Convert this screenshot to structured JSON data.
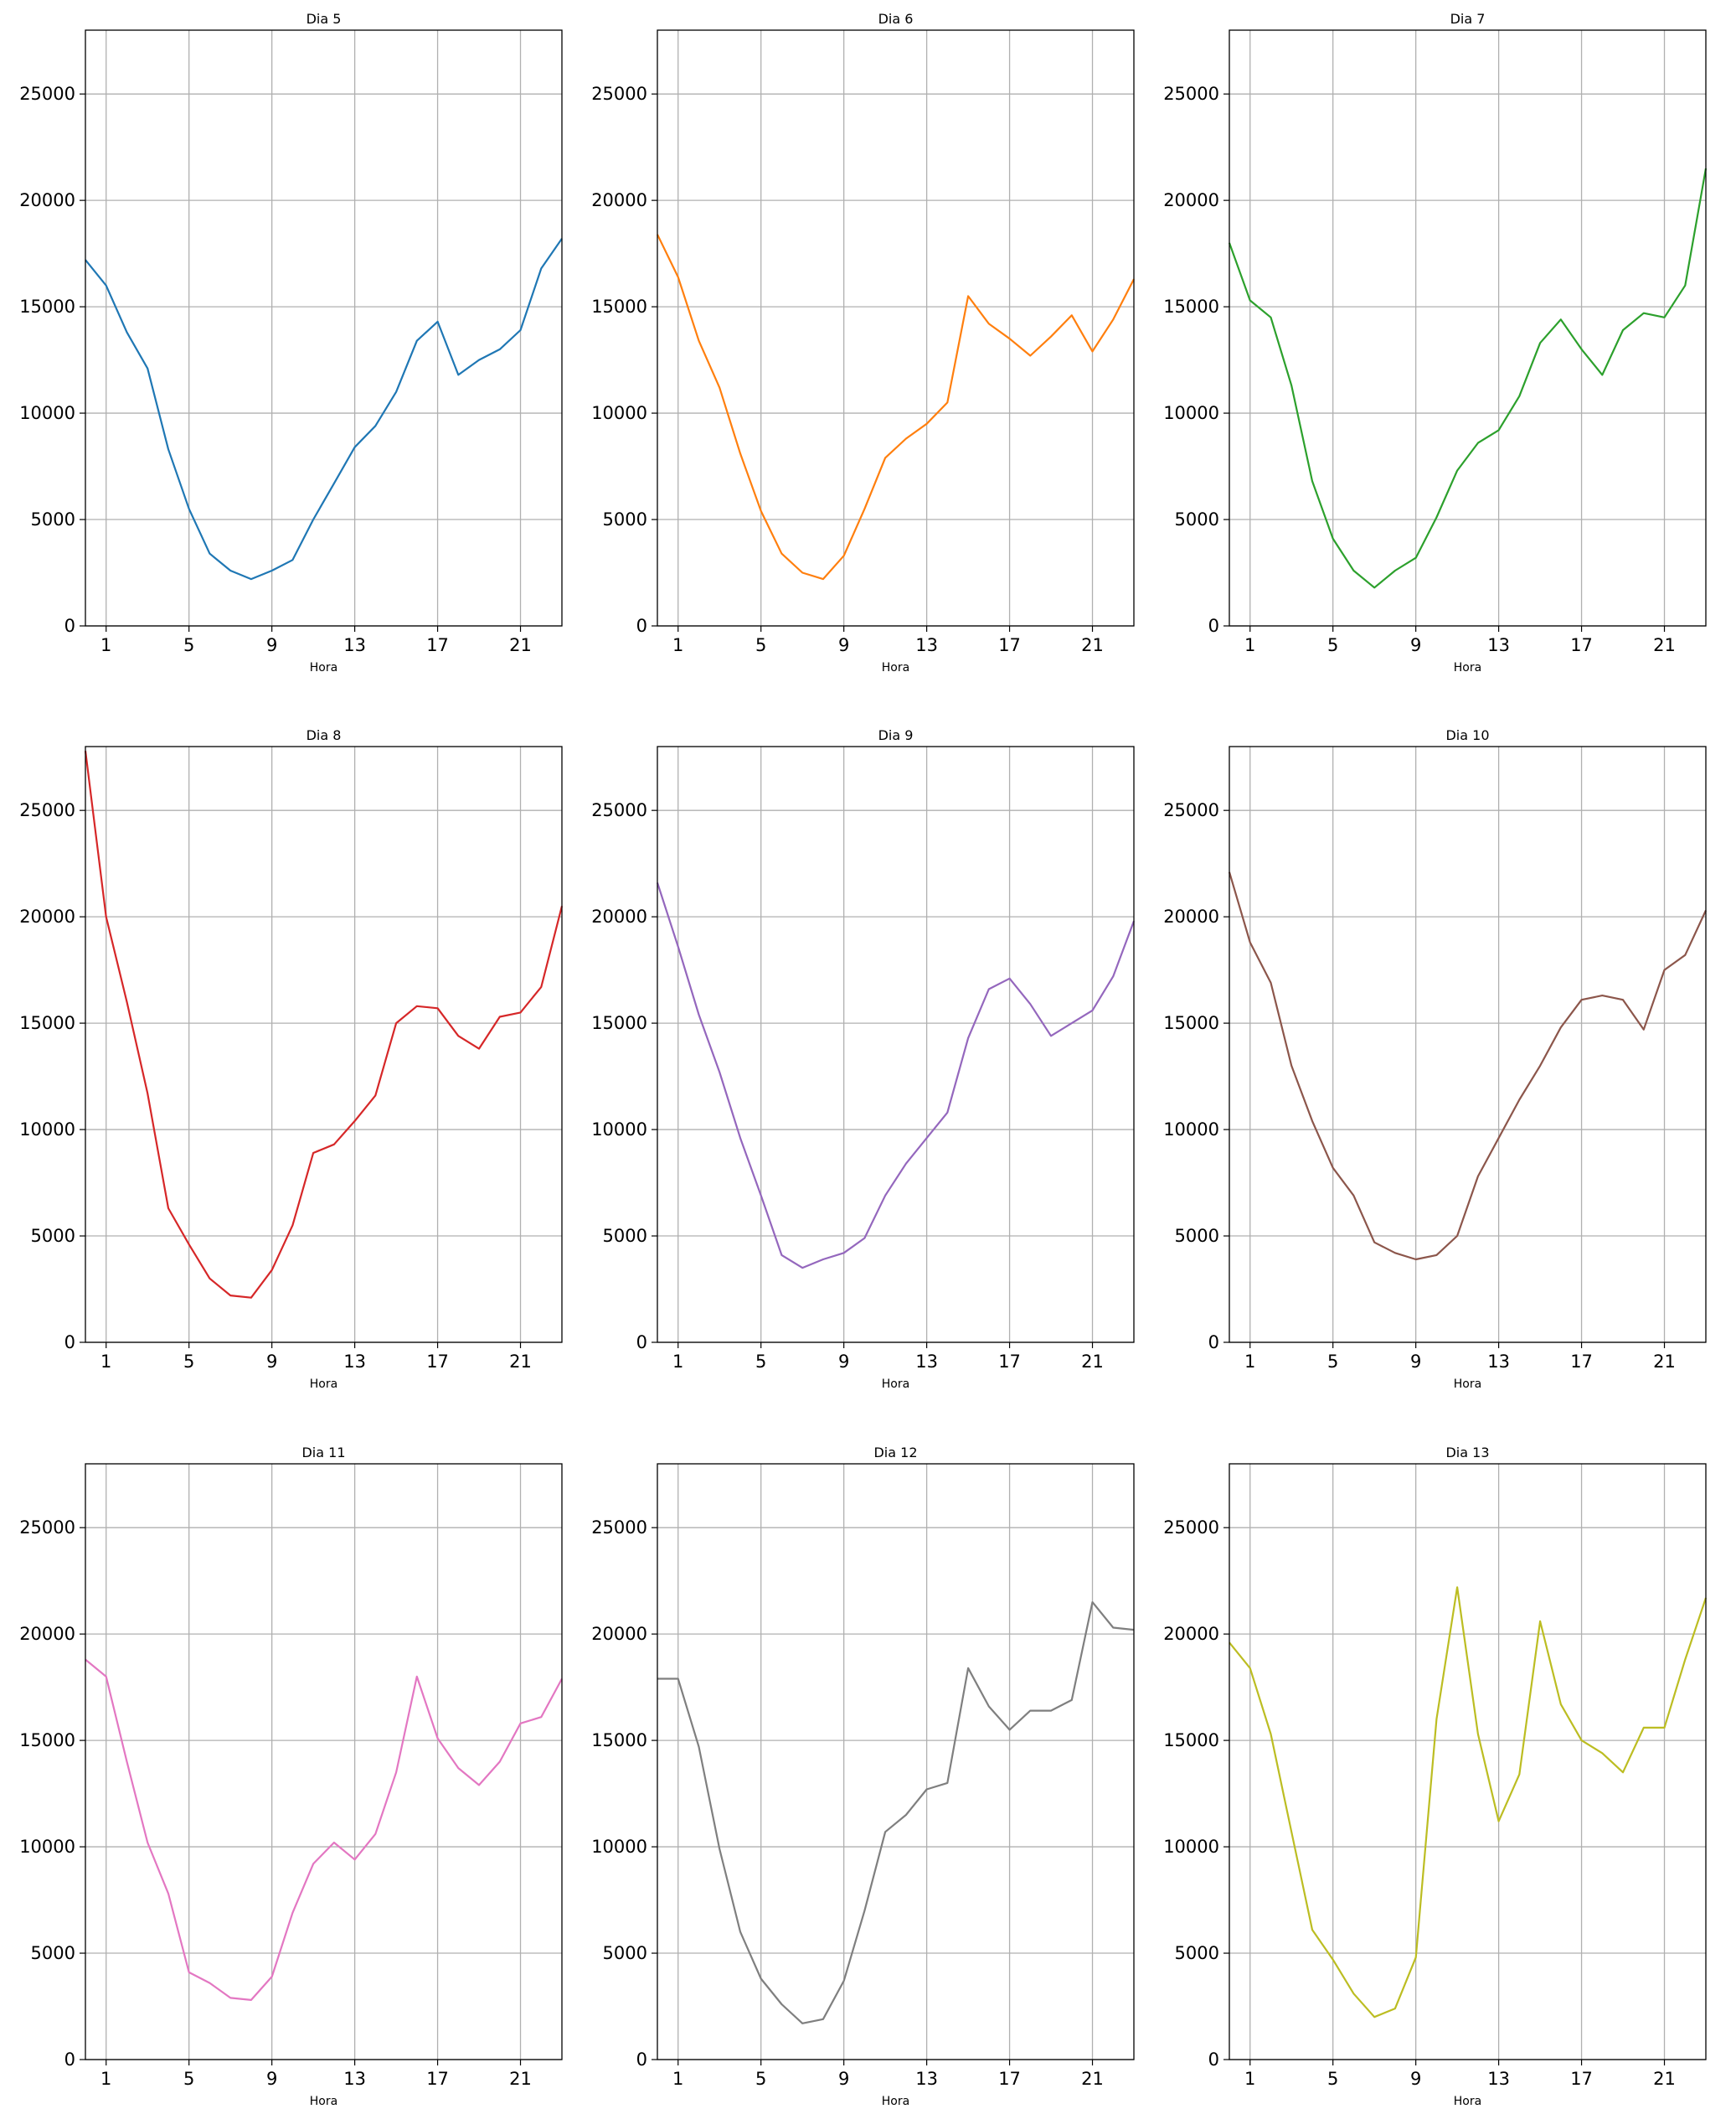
{
  "chart_data": [
    {
      "type": "line",
      "title": "Dia 5",
      "xlabel": "Hora",
      "ylabel": "",
      "xlim": [
        0,
        23
      ],
      "ylim": [
        0,
        28000
      ],
      "xticks": [
        1,
        5,
        9,
        13,
        17,
        21
      ],
      "yticks": [
        0,
        5000,
        10000,
        15000,
        20000,
        25000
      ],
      "grid": true,
      "color": "#1f77b4",
      "x": [
        0,
        1,
        2,
        3,
        4,
        5,
        6,
        7,
        8,
        9,
        10,
        11,
        12,
        13,
        14,
        15,
        16,
        17,
        18,
        19,
        20,
        21,
        22,
        23
      ],
      "y": [
        17200,
        16000,
        13800,
        12100,
        8300,
        5500,
        3400,
        2600,
        2200,
        2600,
        3100,
        5000,
        6700,
        8400,
        9400,
        11000,
        13400,
        14300,
        11800,
        12500,
        13000,
        13900,
        16800,
        18200
      ]
    },
    {
      "type": "line",
      "title": "Dia 6",
      "xlabel": "Hora",
      "ylabel": "",
      "xlim": [
        0,
        23
      ],
      "ylim": [
        0,
        28000
      ],
      "xticks": [
        1,
        5,
        9,
        13,
        17,
        21
      ],
      "yticks": [
        0,
        5000,
        10000,
        15000,
        20000,
        25000
      ],
      "grid": true,
      "color": "#ff7f0e",
      "x": [
        0,
        1,
        2,
        3,
        4,
        5,
        6,
        7,
        8,
        9,
        10,
        11,
        12,
        13,
        14,
        15,
        16,
        17,
        18,
        19,
        20,
        21,
        22,
        23
      ],
      "y": [
        18400,
        16400,
        13400,
        11200,
        8100,
        5400,
        3400,
        2500,
        2200,
        3300,
        5500,
        7900,
        8800,
        9500,
        10500,
        15500,
        14200,
        13500,
        12700,
        13600,
        14600,
        12900,
        14400,
        16300
      ]
    },
    {
      "type": "line",
      "title": "Dia 7",
      "xlabel": "Hora",
      "ylabel": "",
      "xlim": [
        0,
        23
      ],
      "ylim": [
        0,
        28000
      ],
      "xticks": [
        1,
        5,
        9,
        13,
        17,
        21
      ],
      "yticks": [
        0,
        5000,
        10000,
        15000,
        20000,
        25000
      ],
      "grid": true,
      "color": "#2ca02c",
      "x": [
        0,
        1,
        2,
        3,
        4,
        5,
        6,
        7,
        8,
        9,
        10,
        11,
        12,
        13,
        14,
        15,
        16,
        17,
        18,
        19,
        20,
        21,
        22,
        23
      ],
      "y": [
        18000,
        15300,
        14500,
        11300,
        6800,
        4100,
        2600,
        1800,
        2600,
        3200,
        5100,
        7300,
        8600,
        9200,
        10800,
        13300,
        14400,
        13000,
        11800,
        13900,
        14700,
        14500,
        16000,
        21500
      ]
    },
    {
      "type": "line",
      "title": "Dia 8",
      "xlabel": "Hora",
      "ylabel": "",
      "xlim": [
        0,
        23
      ],
      "ylim": [
        0,
        28000
      ],
      "xticks": [
        1,
        5,
        9,
        13,
        17,
        21
      ],
      "yticks": [
        0,
        5000,
        10000,
        15000,
        20000,
        25000
      ],
      "grid": true,
      "color": "#d62728",
      "x": [
        0,
        1,
        2,
        3,
        4,
        5,
        6,
        7,
        8,
        9,
        10,
        11,
        12,
        13,
        14,
        15,
        16,
        17,
        18,
        19,
        20,
        21,
        22,
        23
      ],
      "y": [
        27800,
        20000,
        16000,
        11700,
        6300,
        4600,
        3000,
        2200,
        2100,
        3400,
        5500,
        8900,
        9300,
        10400,
        11600,
        15000,
        15800,
        15700,
        14400,
        13800,
        15300,
        15500,
        16700,
        20500
      ]
    },
    {
      "type": "line",
      "title": "Dia 9",
      "xlabel": "Hora",
      "ylabel": "",
      "xlim": [
        0,
        23
      ],
      "ylim": [
        0,
        28000
      ],
      "xticks": [
        1,
        5,
        9,
        13,
        17,
        21
      ],
      "yticks": [
        0,
        5000,
        10000,
        15000,
        20000,
        25000
      ],
      "grid": true,
      "color": "#9467bd",
      "x": [
        0,
        1,
        2,
        3,
        4,
        5,
        6,
        7,
        8,
        9,
        10,
        11,
        12,
        13,
        14,
        15,
        16,
        17,
        18,
        19,
        20,
        21,
        22,
        23
      ],
      "y": [
        21600,
        18600,
        15400,
        12700,
        9600,
        6900,
        4100,
        3500,
        3900,
        4200,
        4900,
        6900,
        8400,
        9600,
        10800,
        14300,
        16600,
        17100,
        15900,
        14400,
        15000,
        15600,
        17200,
        19800
      ]
    },
    {
      "type": "line",
      "title": "Dia 10",
      "xlabel": "Hora",
      "ylabel": "",
      "xlim": [
        0,
        23
      ],
      "ylim": [
        0,
        28000
      ],
      "xticks": [
        1,
        5,
        9,
        13,
        17,
        21
      ],
      "yticks": [
        0,
        5000,
        10000,
        15000,
        20000,
        25000
      ],
      "grid": true,
      "color": "#8c564b",
      "x": [
        0,
        1,
        2,
        3,
        4,
        5,
        6,
        7,
        8,
        9,
        10,
        11,
        12,
        13,
        14,
        15,
        16,
        17,
        18,
        19,
        20,
        21,
        22,
        23
      ],
      "y": [
        22100,
        18800,
        16900,
        13000,
        10400,
        8200,
        6900,
        4700,
        4200,
        3900,
        4100,
        5000,
        7800,
        9600,
        11400,
        13000,
        14800,
        16100,
        16300,
        16100,
        14700,
        17500,
        18200,
        20300
      ]
    },
    {
      "type": "line",
      "title": "Dia 11",
      "xlabel": "Hora",
      "ylabel": "",
      "xlim": [
        0,
        23
      ],
      "ylim": [
        0,
        28000
      ],
      "xticks": [
        1,
        5,
        9,
        13,
        17,
        21
      ],
      "yticks": [
        0,
        5000,
        10000,
        15000,
        20000,
        25000
      ],
      "grid": true,
      "color": "#e377c2",
      "x": [
        0,
        1,
        2,
        3,
        4,
        5,
        6,
        7,
        8,
        9,
        10,
        11,
        12,
        13,
        14,
        15,
        16,
        17,
        18,
        19,
        20,
        21,
        22,
        23
      ],
      "y": [
        18800,
        18000,
        14000,
        10200,
        7800,
        4100,
        3600,
        2900,
        2800,
        3900,
        6900,
        9200,
        10200,
        9400,
        10600,
        13500,
        18000,
        15100,
        13700,
        12900,
        14000,
        15800,
        16100,
        17900
      ]
    },
    {
      "type": "line",
      "title": "Dia 12",
      "xlabel": "Hora",
      "ylabel": "",
      "xlim": [
        0,
        23
      ],
      "ylim": [
        0,
        28000
      ],
      "xticks": [
        1,
        5,
        9,
        13,
        17,
        21
      ],
      "yticks": [
        0,
        5000,
        10000,
        15000,
        20000,
        25000
      ],
      "grid": true,
      "color": "#7f7f7f",
      "x": [
        0,
        1,
        2,
        3,
        4,
        5,
        6,
        7,
        8,
        9,
        10,
        11,
        12,
        13,
        14,
        15,
        16,
        17,
        18,
        19,
        20,
        21,
        22,
        23
      ],
      "y": [
        17900,
        17900,
        14700,
        9900,
        6000,
        3800,
        2600,
        1700,
        1900,
        3700,
        7000,
        10700,
        11500,
        12700,
        13000,
        18400,
        16600,
        15500,
        16400,
        16400,
        16900,
        21500,
        20300,
        20200
      ]
    },
    {
      "type": "line",
      "title": "Dia 13",
      "xlabel": "Hora",
      "ylabel": "",
      "xlim": [
        0,
        23
      ],
      "ylim": [
        0,
        28000
      ],
      "xticks": [
        1,
        5,
        9,
        13,
        17,
        21
      ],
      "yticks": [
        0,
        5000,
        10000,
        15000,
        20000,
        25000
      ],
      "grid": true,
      "color": "#bcbd22",
      "x": [
        0,
        1,
        2,
        3,
        4,
        5,
        6,
        7,
        8,
        9,
        10,
        11,
        12,
        13,
        14,
        15,
        16,
        17,
        18,
        19,
        20,
        21,
        22,
        23
      ],
      "y": [
        19600,
        18400,
        15300,
        10700,
        6100,
        4700,
        3100,
        2000,
        2400,
        4800,
        16000,
        22200,
        15300,
        11200,
        13400,
        20600,
        16700,
        15000,
        14400,
        13500,
        15600,
        15600,
        18800,
        21700
      ]
    }
  ]
}
